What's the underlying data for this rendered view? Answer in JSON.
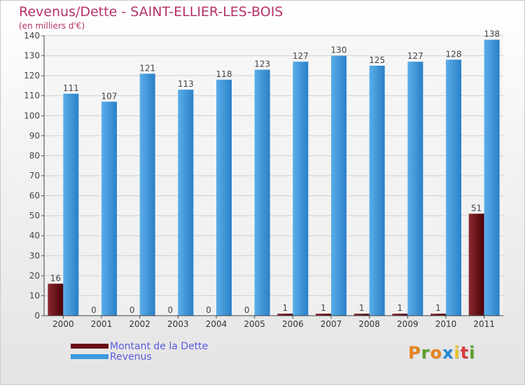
{
  "header": {
    "title": "Revenus/Dette - SAINT-ELLIER-LES-BOIS",
    "subtitle": "(en milliers d'€)"
  },
  "logo": {
    "letters": [
      "P",
      "r",
      "o",
      "x",
      "i",
      "t",
      "i"
    ],
    "colors": [
      "#e8821e",
      "#5aa02c",
      "#e8821e",
      "#1e88d8",
      "#e8c21e",
      "#d83c3c",
      "#5aa02c"
    ]
  },
  "colors": {
    "dette": "#6b0d14",
    "revenus": "#3b9ae1",
    "title": "#b5326a",
    "legend_text": "#5a5adf"
  },
  "chart_data": {
    "type": "bar",
    "categories": [
      "2000",
      "2001",
      "2002",
      "2003",
      "2004",
      "2005",
      "2006",
      "2007",
      "2008",
      "2009",
      "2010",
      "2011"
    ],
    "series": [
      {
        "name": "Montant de la Dette",
        "values": [
          16,
          0,
          0,
          0,
          0,
          0,
          1,
          1,
          1,
          1,
          1,
          51
        ]
      },
      {
        "name": "Revenus",
        "values": [
          111,
          107,
          121,
          113,
          118,
          123,
          127,
          130,
          125,
          127,
          128,
          138
        ]
      }
    ],
    "title": "Revenus/Dette - SAINT-ELLIER-LES-BOIS",
    "ylabel": "(en milliers d'€)",
    "ylim": [
      0,
      140
    ],
    "yticks": [
      0,
      10,
      20,
      30,
      40,
      50,
      60,
      70,
      80,
      90,
      100,
      110,
      120,
      130,
      140
    ],
    "grid": true,
    "legend": "bottom-left"
  }
}
